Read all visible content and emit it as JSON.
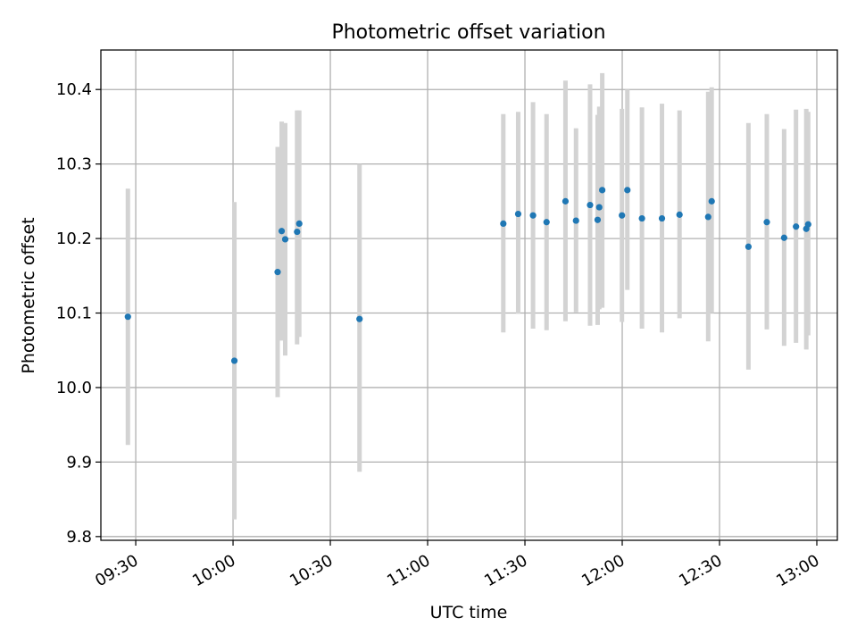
{
  "chart_data": {
    "type": "scatter",
    "title": "Photometric offset variation",
    "xlabel": "UTC time",
    "ylabel": "Photometric offset",
    "x_ticks": [
      "09:30",
      "10:00",
      "10:30",
      "11:00",
      "11:30",
      "12:00",
      "12:30",
      "13:00"
    ],
    "y_ticks": [
      "9.8",
      "9.9",
      "10.0",
      "10.1",
      "10.2",
      "10.3",
      "10.4"
    ],
    "xlim": [
      "09:19:15",
      "13:06:20"
    ],
    "ylim": [
      9.795,
      10.453
    ],
    "grid": true,
    "colors": {
      "marker": "#1f77b4",
      "errorbar": "#d3d3d3",
      "grid": "#b0b0b0"
    },
    "series": [
      {
        "points": [
          {
            "x": "09:27:35",
            "y": 10.095,
            "y_lo": 9.923,
            "y_hi": 10.267
          },
          {
            "x": "10:00:25",
            "y": 10.036,
            "y_lo": 9.823,
            "y_hi": 10.249
          },
          {
            "x": "10:13:45",
            "y": 10.155,
            "y_lo": 9.987,
            "y_hi": 10.323
          },
          {
            "x": "10:15:00",
            "y": 10.21,
            "y_lo": 10.063,
            "y_hi": 10.357
          },
          {
            "x": "10:16:05",
            "y": 10.199,
            "y_lo": 10.043,
            "y_hi": 10.355
          },
          {
            "x": "10:19:45",
            "y": 10.209,
            "y_lo": 10.058,
            "y_hi": 10.372
          },
          {
            "x": "10:20:25",
            "y": 10.22,
            "y_lo": 10.068,
            "y_hi": 10.372
          },
          {
            "x": "10:39:00",
            "y": 10.092,
            "y_lo": 9.887,
            "y_hi": 10.3
          },
          {
            "x": "11:23:20",
            "y": 10.22,
            "y_lo": 10.074,
            "y_hi": 10.367
          },
          {
            "x": "11:27:55",
            "y": 10.233,
            "y_lo": 10.099,
            "y_hi": 10.37
          },
          {
            "x": "11:32:30",
            "y": 10.231,
            "y_lo": 10.079,
            "y_hi": 10.383
          },
          {
            "x": "11:36:40",
            "y": 10.222,
            "y_lo": 10.077,
            "y_hi": 10.367
          },
          {
            "x": "11:42:30",
            "y": 10.25,
            "y_lo": 10.089,
            "y_hi": 10.412
          },
          {
            "x": "11:45:45",
            "y": 10.224,
            "y_lo": 10.101,
            "y_hi": 10.348
          },
          {
            "x": "11:50:05",
            "y": 10.245,
            "y_lo": 10.083,
            "y_hi": 10.407
          },
          {
            "x": "11:52:25",
            "y": 10.225,
            "y_lo": 10.084,
            "y_hi": 10.366
          },
          {
            "x": "11:52:55",
            "y": 10.242,
            "y_lo": 10.105,
            "y_hi": 10.377
          },
          {
            "x": "11:53:50",
            "y": 10.265,
            "y_lo": 10.107,
            "y_hi": 10.422
          },
          {
            "x": "11:59:55",
            "y": 10.231,
            "y_lo": 10.088,
            "y_hi": 10.374
          },
          {
            "x": "12:01:35",
            "y": 10.265,
            "y_lo": 10.131,
            "y_hi": 10.4
          },
          {
            "x": "12:06:05",
            "y": 10.227,
            "y_lo": 10.079,
            "y_hi": 10.376
          },
          {
            "x": "12:12:15",
            "y": 10.227,
            "y_lo": 10.074,
            "y_hi": 10.381
          },
          {
            "x": "12:17:40",
            "y": 10.232,
            "y_lo": 10.093,
            "y_hi": 10.372
          },
          {
            "x": "12:26:30",
            "y": 10.229,
            "y_lo": 10.062,
            "y_hi": 10.397
          },
          {
            "x": "12:27:35",
            "y": 10.25,
            "y_lo": 10.1,
            "y_hi": 10.403
          },
          {
            "x": "12:38:55",
            "y": 10.189,
            "y_lo": 10.024,
            "y_hi": 10.355
          },
          {
            "x": "12:44:35",
            "y": 10.222,
            "y_lo": 10.078,
            "y_hi": 10.367
          },
          {
            "x": "12:49:55",
            "y": 10.201,
            "y_lo": 10.056,
            "y_hi": 10.347
          },
          {
            "x": "12:53:35",
            "y": 10.216,
            "y_lo": 10.06,
            "y_hi": 10.373
          },
          {
            "x": "12:56:45",
            "y": 10.213,
            "y_lo": 10.051,
            "y_hi": 10.374
          },
          {
            "x": "12:57:20",
            "y": 10.219,
            "y_lo": 10.07,
            "y_hi": 10.37
          }
        ]
      }
    ]
  }
}
